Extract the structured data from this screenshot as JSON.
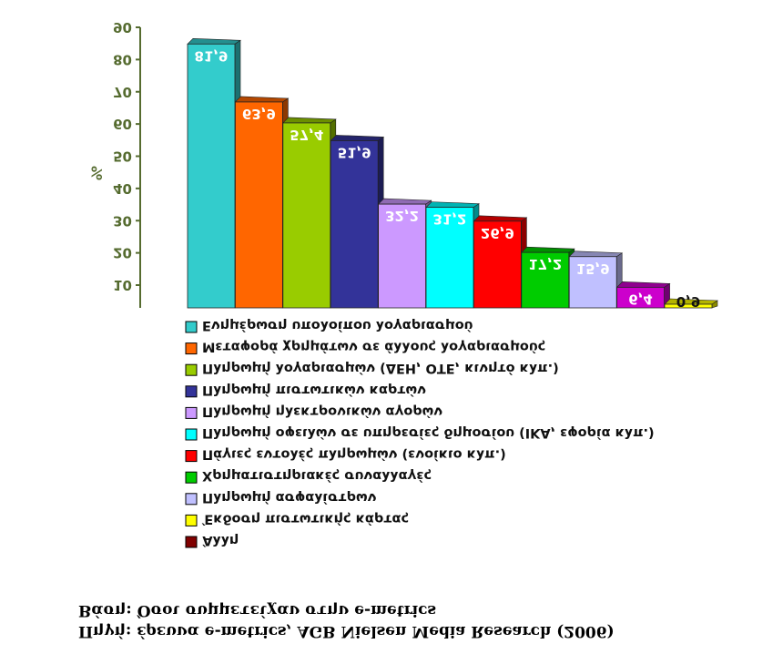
{
  "header": {
    "source": "Πηγή: έρευνα e-metrics, AGB Nielsen Media Research (2006)",
    "base": "Βάση: Όσοι συμμετείχαν στην e-metrics"
  },
  "chart_data": {
    "type": "bar",
    "title": "",
    "xlabel": "",
    "ylabel": "%",
    "ylim": [
      0,
      90
    ],
    "yticks": [
      0,
      10,
      20,
      30,
      40,
      50,
      60,
      70,
      80,
      90
    ],
    "legend_position": "top",
    "categories": [
      "Ενημέρωση υπολοίπου λογαριασμού",
      "Μεταφορά χρημάτων σε άλλους λογαριασμούς",
      "Πληρωμή λογαριασμών (ΔΕΗ, ΟΤΕ, κινητό κλπ.)",
      "Πληρωμή πιστωτικών καρτών",
      "Πληρωμή ηλεκτρονικών αγορών",
      "Πληρωμή οφειλών σε υπηρεσίες δημοσίου (ΙΚΑ, εφορία κλπ.)",
      "Πάγιες εντολές πληρωμών (ενοίκιο κλπ.)",
      "Χρηματιστηριακές συναλλαγές",
      "Πληρωμή ασφαλίστρων",
      "Έκδοση πιστωτικής κάρτας",
      "Άλλη"
    ],
    "values": [
      81.9,
      63.9,
      57.4,
      51.9,
      32.2,
      31.2,
      26.9,
      17.2,
      15.9,
      6.4,
      0.9
    ],
    "value_labels": [
      "81,9",
      "63,9",
      "57,4",
      "51,9",
      "32,2",
      "31,2",
      "26,9",
      "17,2",
      "15,9",
      "6,4",
      "0,9"
    ],
    "colors": [
      "#33cccc",
      "#ff6600",
      "#99cc00",
      "#333399",
      "#cc99ff",
      "#00ffff",
      "#ff0000",
      "#00cc00",
      "#c0c0ff",
      "#cc00cc",
      "#ffff00"
    ]
  },
  "legend_colors": [
    "#800000",
    "#ffff00",
    "#c0c0ff",
    "#00cc00",
    "#ff0000",
    "#00ffff",
    "#cc99ff",
    "#333399",
    "#99cc00",
    "#ff6600",
    "#33cccc"
  ],
  "legend_order": [
    10,
    9,
    8,
    7,
    6,
    5,
    4,
    3,
    2,
    1,
    0
  ]
}
